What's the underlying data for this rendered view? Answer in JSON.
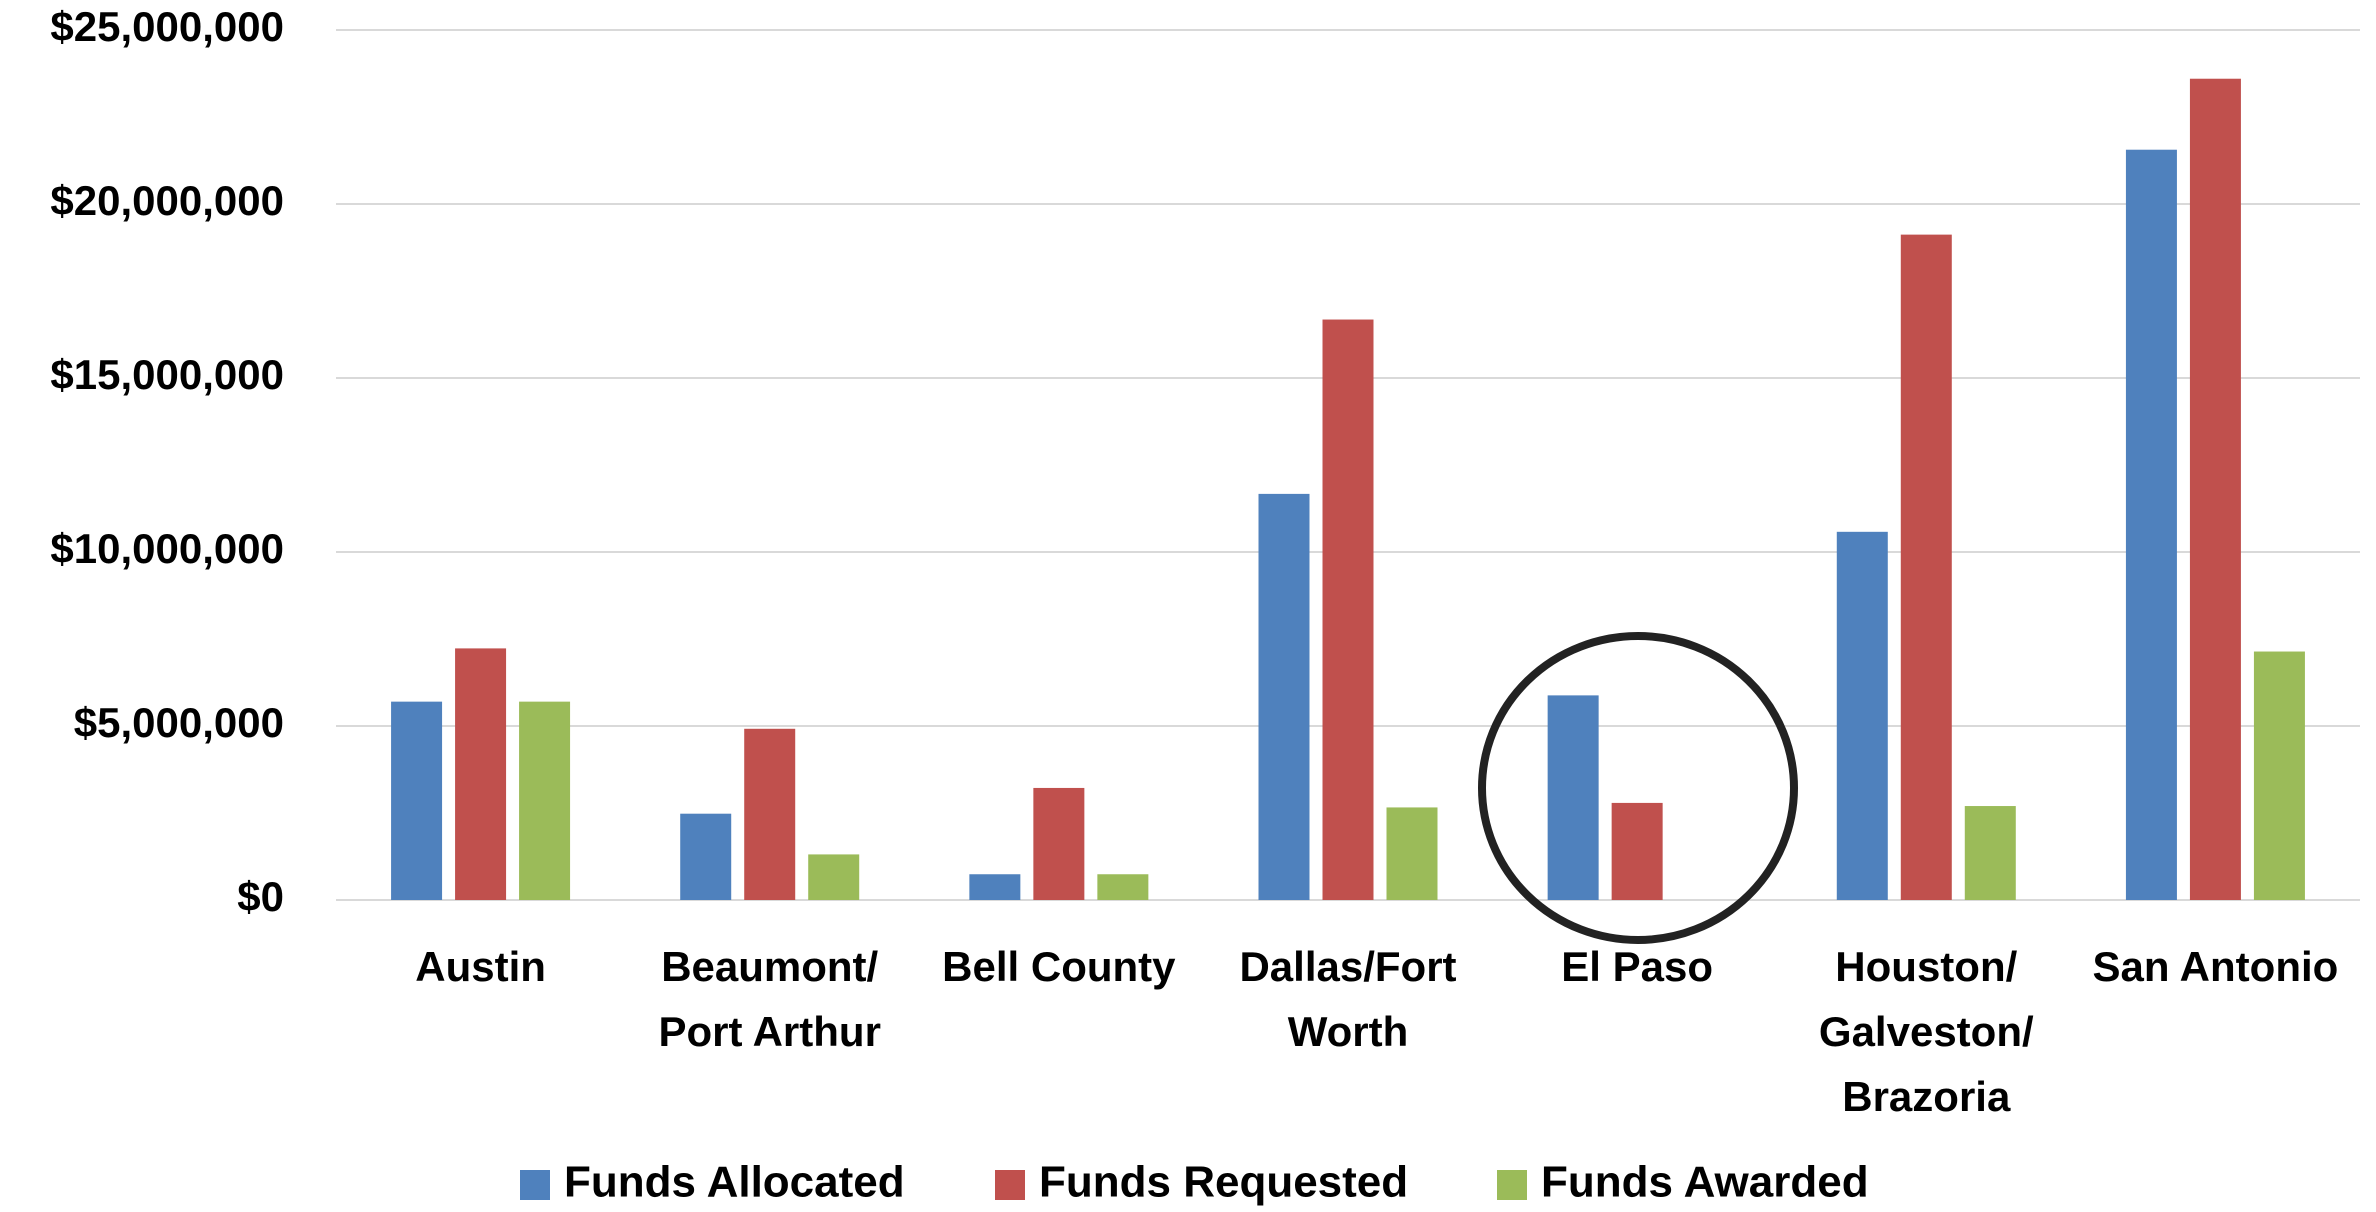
{
  "chart_data": {
    "type": "bar",
    "categories": [
      "Austin",
      "Beaumont/\nPort Arthur",
      "Bell County",
      "Dallas/Fort\nWorth",
      "El Paso",
      "Houston/\nGalveston/\nBrazoria",
      "San Antonio"
    ],
    "series": [
      {
        "name": "Funds Allocated",
        "color": "#4f81bd",
        "values": [
          5700000,
          2480000,
          740000,
          11670000,
          5880000,
          10580000,
          21560000
        ]
      },
      {
        "name": "Funds Requested",
        "color": "#c0504d",
        "values": [
          7230000,
          4920000,
          3220000,
          16680000,
          2790000,
          19120000,
          23600000
        ]
      },
      {
        "name": "Funds Awarded",
        "color": "#9bbb59",
        "values": [
          5700000,
          1310000,
          740000,
          2660000,
          null,
          2700000,
          7140000
        ]
      }
    ],
    "ylim": [
      0,
      25000000
    ],
    "yticks": [
      {
        "value": 0,
        "label": "$0"
      },
      {
        "value": 5000000,
        "label": "$5,000,000"
      },
      {
        "value": 10000000,
        "label": "$10,000,000"
      },
      {
        "value": 15000000,
        "label": "$15,000,000"
      },
      {
        "value": 20000000,
        "label": "$20,000,000"
      },
      {
        "value": 25000000,
        "label": "$25,000,000"
      }
    ],
    "grid": true,
    "legend": "bottom"
  }
}
